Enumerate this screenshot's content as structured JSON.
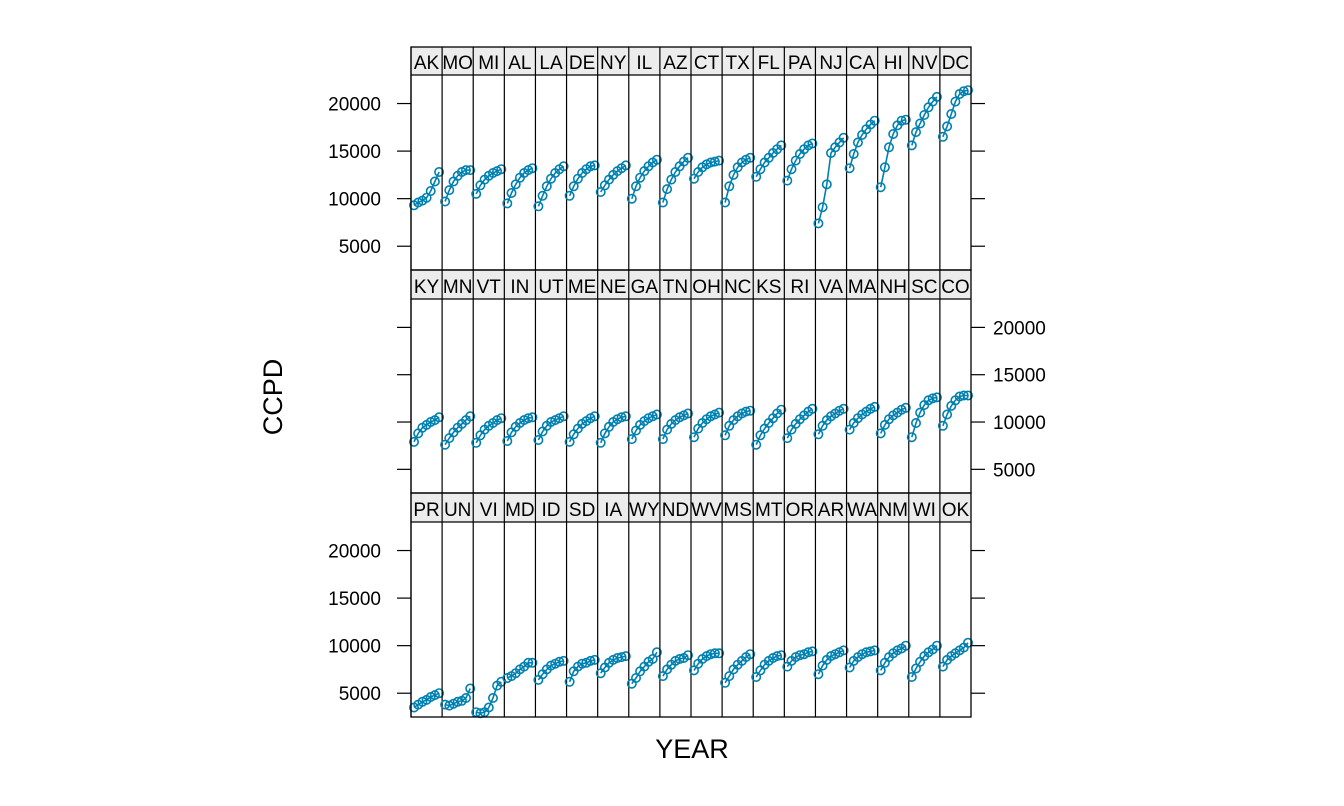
{
  "chart_data": {
    "type": "line",
    "xlabel": "YEAR",
    "ylabel": "CCPD",
    "ylim": [
      2500,
      23000
    ],
    "yticks": [
      5000,
      10000,
      15000,
      20000
    ],
    "tick_labels": [
      "5000",
      "10000",
      "15000",
      "20000"
    ],
    "marker": "open-circle",
    "series_color": "#0080b0",
    "panels": [
      {
        "name": "PR",
        "values": [
          3500,
          3800,
          4100,
          4300,
          4600,
          4800,
          5000
        ]
      },
      {
        "name": "UN",
        "values": [
          3800,
          3700,
          3900,
          4100,
          4200,
          4500,
          5500
        ]
      },
      {
        "name": "VI",
        "values": [
          3000,
          2900,
          3000,
          3500,
          4500,
          5800,
          6200
        ]
      },
      {
        "name": "MD",
        "values": [
          6600,
          6800,
          7100,
          7500,
          7800,
          8200,
          8200
        ]
      },
      {
        "name": "ID",
        "values": [
          6400,
          7000,
          7500,
          7900,
          8100,
          8300,
          8400
        ]
      },
      {
        "name": "SD",
        "values": [
          6200,
          7300,
          7800,
          8100,
          8200,
          8400,
          8500
        ]
      },
      {
        "name": "IA",
        "values": [
          7100,
          7700,
          8200,
          8500,
          8700,
          8800,
          8900
        ]
      },
      {
        "name": "WY",
        "values": [
          6000,
          6600,
          7300,
          7800,
          8300,
          8600,
          9300
        ]
      },
      {
        "name": "ND",
        "values": [
          6800,
          7500,
          8000,
          8400,
          8600,
          8700,
          9000
        ]
      },
      {
        "name": "WV",
        "values": [
          7400,
          8100,
          8600,
          8900,
          9100,
          9200,
          9200
        ]
      },
      {
        "name": "MS",
        "values": [
          6100,
          6800,
          7500,
          8000,
          8400,
          8800,
          9100
        ]
      },
      {
        "name": "MT",
        "values": [
          6700,
          7400,
          8000,
          8400,
          8700,
          8900,
          9000
        ]
      },
      {
        "name": "OR",
        "values": [
          7800,
          8400,
          8800,
          9000,
          9100,
          9300,
          9400
        ]
      },
      {
        "name": "AR",
        "values": [
          7000,
          7900,
          8500,
          8900,
          9100,
          9300,
          9500
        ]
      },
      {
        "name": "WA",
        "values": [
          7700,
          8400,
          8800,
          9100,
          9300,
          9400,
          9500
        ]
      },
      {
        "name": "NM",
        "values": [
          7400,
          8200,
          8800,
          9200,
          9500,
          9700,
          10000
        ]
      },
      {
        "name": "WI",
        "values": [
          6700,
          7600,
          8300,
          8900,
          9300,
          9600,
          10000
        ]
      },
      {
        "name": "OK",
        "values": [
          7800,
          8500,
          8900,
          9200,
          9500,
          9800,
          10300
        ]
      },
      {
        "name": "KY",
        "values": [
          7900,
          8800,
          9400,
          9700,
          10000,
          10200,
          10500
        ]
      },
      {
        "name": "MN",
        "values": [
          7600,
          8300,
          8900,
          9400,
          9800,
          10200,
          10600
        ]
      },
      {
        "name": "VT",
        "values": [
          7800,
          8600,
          9200,
          9600,
          9900,
          10200,
          10400
        ]
      },
      {
        "name": "IN",
        "values": [
          8000,
          8900,
          9500,
          9900,
          10200,
          10400,
          10500
        ]
      },
      {
        "name": "UT",
        "values": [
          8100,
          9000,
          9600,
          10000,
          10200,
          10400,
          10600
        ]
      },
      {
        "name": "ME",
        "values": [
          7900,
          8700,
          9300,
          9800,
          10100,
          10400,
          10600
        ]
      },
      {
        "name": "NE",
        "values": [
          7800,
          8800,
          9500,
          10000,
          10300,
          10500,
          10600
        ]
      },
      {
        "name": "GA",
        "values": [
          8200,
          9100,
          9700,
          10100,
          10400,
          10600,
          10800
        ]
      },
      {
        "name": "TN",
        "values": [
          8200,
          9200,
          9800,
          10200,
          10500,
          10700,
          10900
        ]
      },
      {
        "name": "OH",
        "values": [
          8400,
          9300,
          9900,
          10300,
          10600,
          10800,
          11000
        ]
      },
      {
        "name": "NC",
        "values": [
          8600,
          9600,
          10200,
          10600,
          10900,
          11100,
          11200
        ]
      },
      {
        "name": "KS",
        "values": [
          7600,
          8600,
          9300,
          9900,
          10400,
          10900,
          11300
        ]
      },
      {
        "name": "RI",
        "values": [
          8300,
          9200,
          9800,
          10300,
          10700,
          11100,
          11400
        ]
      },
      {
        "name": "VA",
        "values": [
          8700,
          9600,
          10200,
          10600,
          10900,
          11200,
          11400
        ]
      },
      {
        "name": "MA",
        "values": [
          9200,
          9900,
          10400,
          10800,
          11100,
          11400,
          11600
        ]
      },
      {
        "name": "NH",
        "values": [
          8800,
          9700,
          10300,
          10700,
          11000,
          11300,
          11500
        ]
      },
      {
        "name": "SC",
        "values": [
          8400,
          9900,
          11000,
          11800,
          12300,
          12500,
          12600
        ]
      },
      {
        "name": "CO",
        "values": [
          9600,
          10800,
          11700,
          12300,
          12700,
          12800,
          12800
        ]
      },
      {
        "name": "AK",
        "values": [
          9300,
          9600,
          9800,
          10100,
          10800,
          11800,
          12800
        ]
      },
      {
        "name": "MO",
        "values": [
          9700,
          10900,
          11800,
          12400,
          12800,
          13000,
          13000
        ]
      },
      {
        "name": "MI",
        "values": [
          10500,
          11400,
          12000,
          12400,
          12700,
          12900,
          13100
        ]
      },
      {
        "name": "AL",
        "values": [
          9500,
          10600,
          11500,
          12200,
          12700,
          13000,
          13200
        ]
      },
      {
        "name": "LA",
        "values": [
          9200,
          10300,
          11300,
          12100,
          12700,
          13100,
          13400
        ]
      },
      {
        "name": "DE",
        "values": [
          10300,
          11300,
          12100,
          12700,
          13100,
          13400,
          13500
        ]
      },
      {
        "name": "NY",
        "values": [
          10700,
          11400,
          12000,
          12500,
          12900,
          13200,
          13500
        ]
      },
      {
        "name": "IL",
        "values": [
          10000,
          11300,
          12200,
          12900,
          13400,
          13800,
          14100
        ]
      },
      {
        "name": "AZ",
        "values": [
          9600,
          11000,
          12000,
          12800,
          13400,
          13900,
          14300
        ]
      },
      {
        "name": "CT",
        "values": [
          12100,
          12800,
          13300,
          13600,
          13800,
          13900,
          14000
        ]
      },
      {
        "name": "TX",
        "values": [
          9600,
          11300,
          12500,
          13300,
          13800,
          14100,
          14300
        ]
      },
      {
        "name": "FL",
        "values": [
          12300,
          13100,
          13800,
          14300,
          14800,
          15200,
          15600
        ]
      },
      {
        "name": "PA",
        "values": [
          11900,
          13100,
          14000,
          14700,
          15200,
          15600,
          15800
        ]
      },
      {
        "name": "NJ",
        "values": [
          7400,
          9100,
          11500,
          14800,
          15400,
          15900,
          16400
        ]
      },
      {
        "name": "CA",
        "values": [
          13200,
          14700,
          15900,
          16700,
          17300,
          17800,
          18200
        ]
      },
      {
        "name": "HI",
        "values": [
          11200,
          13300,
          15400,
          16800,
          17700,
          18200,
          18300
        ]
      },
      {
        "name": "NV",
        "values": [
          15600,
          17000,
          17900,
          18800,
          19600,
          20200,
          20700
        ]
      },
      {
        "name": "DC",
        "values": [
          16500,
          17600,
          18900,
          20200,
          21000,
          21300,
          21400
        ]
      }
    ]
  }
}
